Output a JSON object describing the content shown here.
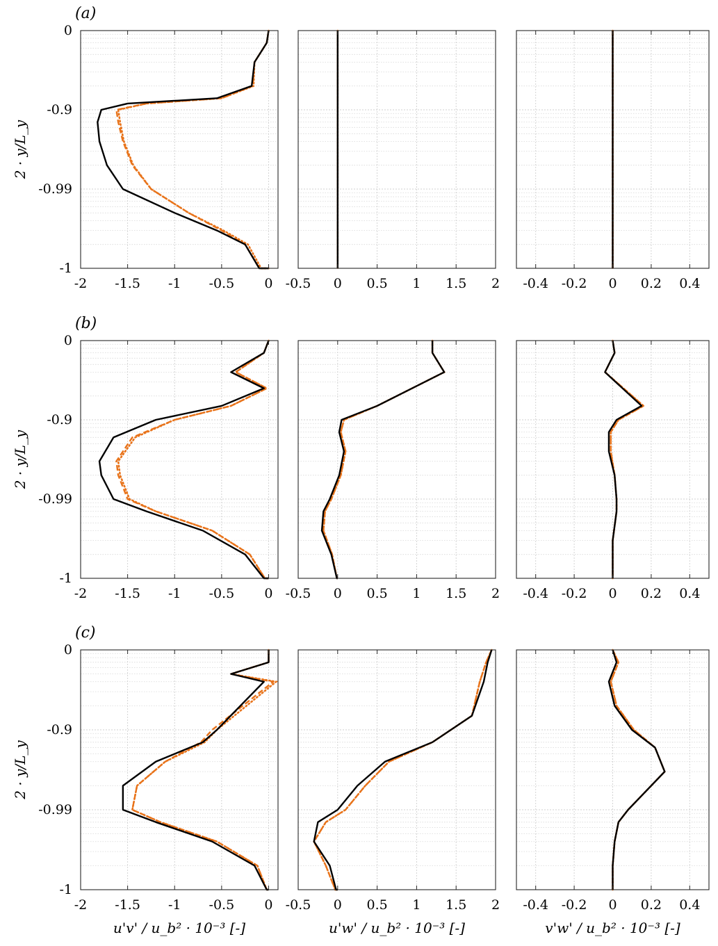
{
  "chart_data": {
    "type": "line",
    "panels": [
      "(a)",
      "(b)",
      "(c)"
    ],
    "ylabel": "2 · y/L_y",
    "y_ticks": [
      "0",
      "-0.9",
      "-0.99",
      "-1"
    ],
    "columns": [
      {
        "xlabel": "u'v' / u_b² · 10⁻³ [-]",
        "xlim": [
          -2,
          0.1
        ],
        "xticks": [
          "-2",
          "-1.5",
          "-1",
          "-0.5",
          "0"
        ],
        "tick_values": [
          -2,
          -1.5,
          -1,
          -0.5,
          0
        ]
      },
      {
        "xlabel": "u'w' / u_b² · 10⁻³ [-]",
        "xlim": [
          -0.5,
          2
        ],
        "xticks": [
          "-0.5",
          "0",
          "0.5",
          "1",
          "1.5",
          "2"
        ],
        "tick_values": [
          -0.5,
          0,
          0.5,
          1,
          1.5,
          2
        ]
      },
      {
        "xlabel": "v'w' / u_b² · 10⁻³ [-]",
        "xlim": [
          -0.5,
          0.5
        ],
        "xticks": [
          "-0.4",
          "-0.2",
          "0",
          "0.2",
          "0.4"
        ],
        "tick_values": [
          -0.4,
          -0.2,
          0,
          0.2,
          0.4
        ]
      }
    ],
    "y_scale": "wall-stretched: the four ticks 0, -0.9, -0.99, -1 are evenly spaced",
    "series_colors": {
      "reference": "#000000",
      "dashed": "#e8731a",
      "dotted": "#e8731a"
    },
    "grid": true,
    "data": [
      [
        {
          "y": [
            0,
            -0.3,
            -0.6,
            -0.8,
            -0.86,
            -0.88,
            -0.9,
            -0.93,
            -0.96,
            -0.98,
            -0.99,
            -0.995,
            -0.997,
            -0.998,
            -0.999,
            -0.9995,
            -1
          ],
          "black": [
            0,
            -0.02,
            -0.15,
            -0.18,
            -0.55,
            -1.5,
            -1.78,
            -1.82,
            -1.8,
            -1.72,
            -1.55,
            -1.0,
            -0.55,
            -0.25,
            -0.1,
            -0.05,
            0
          ],
          "dashed": [
            0,
            -0.02,
            -0.15,
            -0.17,
            -0.5,
            -1.3,
            -1.62,
            -1.6,
            -1.55,
            -1.45,
            -1.25,
            -0.85,
            -0.5,
            -0.25,
            -0.1,
            -0.05,
            0
          ],
          "dotted": [
            0,
            -0.02,
            -0.15,
            -0.16,
            -0.5,
            -1.3,
            -1.6,
            -1.58,
            -1.54,
            -1.44,
            -1.25,
            -0.85,
            -0.48,
            -0.22,
            -0.08,
            -0.04,
            0
          ]
        },
        {
          "y": [
            0,
            -1
          ],
          "black": [
            0,
            0
          ],
          "dashed": [
            0,
            0
          ],
          "dotted": [
            0,
            0
          ]
        },
        {
          "y": [
            0,
            -1
          ],
          "black": [
            0,
            0
          ],
          "dashed": [
            0,
            0
          ],
          "dotted": [
            0,
            0
          ]
        }
      ],
      [
        {
          "y": [
            0,
            -0.3,
            -0.6,
            -0.75,
            -0.85,
            -0.9,
            -0.94,
            -0.97,
            -0.98,
            -0.99,
            -0.993,
            -0.996,
            -0.998,
            -0.9995,
            -1
          ],
          "black": [
            0,
            -0.05,
            -0.4,
            -0.05,
            -0.5,
            -1.2,
            -1.65,
            -1.8,
            -1.78,
            -1.65,
            -1.3,
            -0.7,
            -0.25,
            -0.05,
            0
          ],
          "dashed": [
            0,
            -0.05,
            -0.35,
            -0.02,
            -0.4,
            -1.0,
            -1.45,
            -1.62,
            -1.6,
            -1.5,
            -1.2,
            -0.6,
            -0.2,
            -0.04,
            0
          ],
          "dotted": [
            0,
            -0.05,
            -0.35,
            -0.02,
            -0.4,
            -1.0,
            -1.42,
            -1.6,
            -1.58,
            -1.48,
            -1.2,
            -0.6,
            -0.2,
            -0.04,
            0
          ]
        },
        {
          "y": [
            0,
            -0.3,
            -0.6,
            -0.85,
            -0.9,
            -0.93,
            -0.96,
            -0.98,
            -0.99,
            -0.993,
            -0.996,
            -0.998,
            -0.999,
            -1
          ],
          "black": [
            1.2,
            1.2,
            1.35,
            0.5,
            0.05,
            0.02,
            0.08,
            0.02,
            -0.1,
            -0.18,
            -0.2,
            -0.08,
            -0.01,
            0
          ],
          "dashed": [
            1.2,
            1.2,
            1.35,
            0.5,
            0.08,
            0.04,
            0.1,
            0.04,
            -0.08,
            -0.16,
            -0.18,
            -0.07,
            -0.01,
            0
          ],
          "dotted": [
            1.2,
            1.2,
            1.35,
            0.5,
            0.08,
            0.04,
            0.1,
            0.04,
            -0.08,
            -0.16,
            -0.18,
            -0.07,
            -0.01,
            0
          ]
        },
        {
          "y": [
            0,
            -0.3,
            -0.6,
            -0.85,
            -0.9,
            -0.93,
            -0.96,
            -0.98,
            -0.99,
            -0.993,
            -0.997,
            -1
          ],
          "black": [
            0,
            0.01,
            -0.04,
            0.15,
            0.02,
            -0.02,
            -0.02,
            0.01,
            0.02,
            0.02,
            0.0,
            0
          ],
          "dashed": [
            0,
            0.01,
            -0.04,
            0.16,
            0.03,
            -0.01,
            -0.01,
            0.01,
            0.02,
            0.02,
            0.0,
            0
          ],
          "dotted": [
            0,
            0.01,
            -0.04,
            0.16,
            0.03,
            -0.01,
            -0.01,
            0.01,
            0.02,
            0.02,
            0.0,
            0
          ]
        }
      ],
      [
        {
          "y": [
            0,
            -0.3,
            -0.5,
            -0.6,
            -0.9,
            -0.93,
            -0.96,
            -0.98,
            -0.99,
            -0.993,
            -0.996,
            -0.998,
            -0.9995,
            -1
          ],
          "black": [
            0,
            0,
            -0.4,
            -0.05,
            -0.55,
            -0.7,
            -1.2,
            -1.55,
            -1.55,
            -1.2,
            -0.6,
            -0.15,
            -0.02,
            0
          ],
          "dashed": [
            0,
            0,
            -0.4,
            0.05,
            -0.6,
            -0.72,
            -1.1,
            -1.4,
            -1.45,
            -1.15,
            -0.55,
            -0.12,
            -0.02,
            0
          ],
          "dotted": [
            0,
            0,
            -0.4,
            0.08,
            -0.55,
            -0.68,
            -1.1,
            -1.4,
            -1.45,
            -1.15,
            -0.55,
            -0.12,
            -0.02,
            0
          ]
        },
        {
          "y": [
            0,
            -0.3,
            -0.6,
            -0.85,
            -0.93,
            -0.96,
            -0.98,
            -0.99,
            -0.993,
            -0.996,
            -0.998,
            -0.999,
            -1
          ],
          "black": [
            1.95,
            1.9,
            1.85,
            1.7,
            1.2,
            0.6,
            0.25,
            0.0,
            -0.25,
            -0.3,
            -0.1,
            -0.02,
            0
          ],
          "dashed": [
            1.95,
            1.88,
            1.8,
            1.7,
            1.2,
            0.65,
            0.35,
            0.1,
            -0.15,
            -0.3,
            -0.15,
            -0.03,
            0
          ],
          "dotted": [
            1.95,
            1.88,
            1.8,
            1.7,
            1.2,
            0.65,
            0.35,
            0.1,
            -0.15,
            -0.3,
            -0.15,
            -0.03,
            0
          ]
        },
        {
          "y": [
            0,
            -0.3,
            -0.6,
            -0.8,
            -0.9,
            -0.94,
            -0.97,
            -0.98,
            -0.99,
            -0.993,
            -0.996,
            -0.998,
            -1
          ],
          "black": [
            0,
            0.02,
            -0.02,
            0.01,
            0.1,
            0.22,
            0.27,
            0.2,
            0.08,
            0.03,
            0.01,
            0.0,
            0
          ],
          "dashed": [
            0,
            0.03,
            -0.01,
            0.02,
            0.11,
            0.22,
            0.27,
            0.2,
            0.08,
            0.03,
            0.01,
            0.0,
            0
          ],
          "dotted": [
            0,
            0.03,
            -0.01,
            0.02,
            0.11,
            0.22,
            0.27,
            0.2,
            0.08,
            0.03,
            0.01,
            0.0,
            0
          ]
        }
      ]
    ]
  }
}
